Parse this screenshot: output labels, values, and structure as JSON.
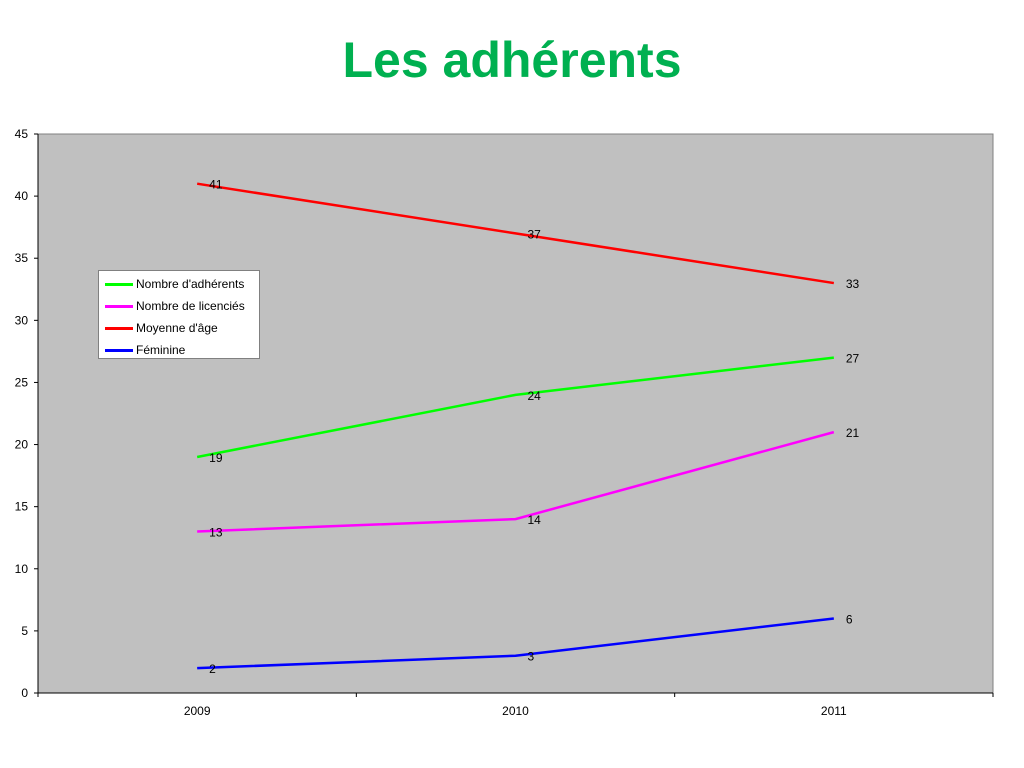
{
  "slide": {
    "title": "Les adhérents"
  },
  "chart_data": {
    "type": "line",
    "title": "",
    "xlabel": "",
    "ylabel": "",
    "categories": [
      "2009",
      "2010",
      "2011"
    ],
    "ylim": [
      0,
      45
    ],
    "yticks": [
      0,
      5,
      10,
      15,
      20,
      25,
      30,
      35,
      40,
      45
    ],
    "grid": false,
    "plot_background": "#c0c0c0",
    "legend_position": "left",
    "series": [
      {
        "name": "Nombre d'adhérents",
        "color": "#00ff00",
        "values": [
          19,
          24,
          27
        ]
      },
      {
        "name": "Nombre de licenciés",
        "color": "#ff00ff",
        "values": [
          13,
          14,
          21
        ]
      },
      {
        "name": "Moyenne d'âge",
        "color": "#ff0000",
        "values": [
          41,
          37,
          33
        ]
      },
      {
        "name": "Féminine",
        "color": "#0000ff",
        "values": [
          2,
          3,
          6
        ]
      }
    ]
  }
}
